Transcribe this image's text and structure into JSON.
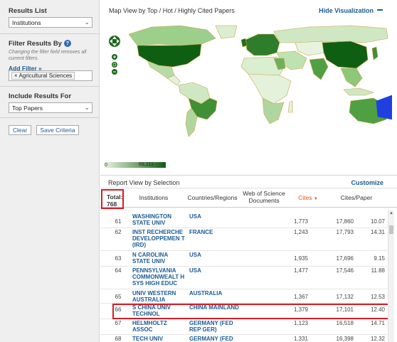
{
  "sidebar": {
    "results_list_title": "Results List",
    "results_list_value": "Institutions",
    "filter_title": "Filter Results By",
    "filter_hint": "Changing the filter field removes all current filters.",
    "add_filter": "Add Filter »",
    "filter_chip": "× Agricultural Sciences",
    "include_title": "Include Results For",
    "include_value": "Top Papers",
    "clear_button": "Clear",
    "save_button": "Save Criteria"
  },
  "map": {
    "title": "Map View by Top / Hot / Highly Cited Papers",
    "hide_link": "Hide Visualization",
    "legend_min": "0",
    "legend_max": "69,211"
  },
  "report": {
    "title": "Report View by Selection",
    "customize": "Customize",
    "total_label": "Total:",
    "total_value": "768"
  },
  "table": {
    "columns": {
      "institutions": "Institutions",
      "countries": "Countries/Regions",
      "docs": "Web of Science Documents",
      "cites": "Cites",
      "cites_per_paper": "Cites/Paper"
    },
    "rows": [
      {
        "rank": "61",
        "inst": "WASHINGTON STATE UNIV",
        "country": "USA",
        "docs": "1,773",
        "cites": "17,860",
        "cpp": "10.07"
      },
      {
        "rank": "62",
        "inst": "INST RECHERCHE DEVELOPPEMEN T (IRD)",
        "country": "FRANCE",
        "docs": "1,243",
        "cites": "17,793",
        "cpp": "14.31"
      },
      {
        "rank": "63",
        "inst": "N CAROLINA STATE UNIV",
        "country": "USA",
        "docs": "1,935",
        "cites": "17,696",
        "cpp": "9.15"
      },
      {
        "rank": "64",
        "inst": "PENNSYLVANIA COMMONWEALT H SYS HIGH EDUC",
        "country": "USA",
        "docs": "1,477",
        "cites": "17,546",
        "cpp": "11.88"
      },
      {
        "rank": "65",
        "inst": "UNIV WESTERN AUSTRALIA",
        "country": "AUSTRALIA",
        "docs": "1,367",
        "cites": "17,132",
        "cpp": "12.53"
      },
      {
        "rank": "66",
        "inst": "S CHINA UNIV TECHNOL",
        "country": "CHINA MAINLAND",
        "docs": "1,379",
        "cites": "17,101",
        "cpp": "12.40"
      },
      {
        "rank": "67",
        "inst": "HELMHOLTZ ASSOC",
        "country": "GERMANY (FED REP GER)",
        "docs": "1,123",
        "cites": "16,518",
        "cpp": "14.71"
      },
      {
        "rank": "68",
        "inst": "TECH UNIV MUNICH",
        "country": "GERMANY (FED REP GER)",
        "docs": "1,331",
        "cites": "16,398",
        "cpp": "12.32"
      }
    ]
  },
  "colors": {
    "accent": "#1a5a96",
    "highlight": "#d31e25",
    "cites_header": "#e0531a",
    "map_dark": "#0e5c10",
    "map_light": "#e7f3df"
  }
}
